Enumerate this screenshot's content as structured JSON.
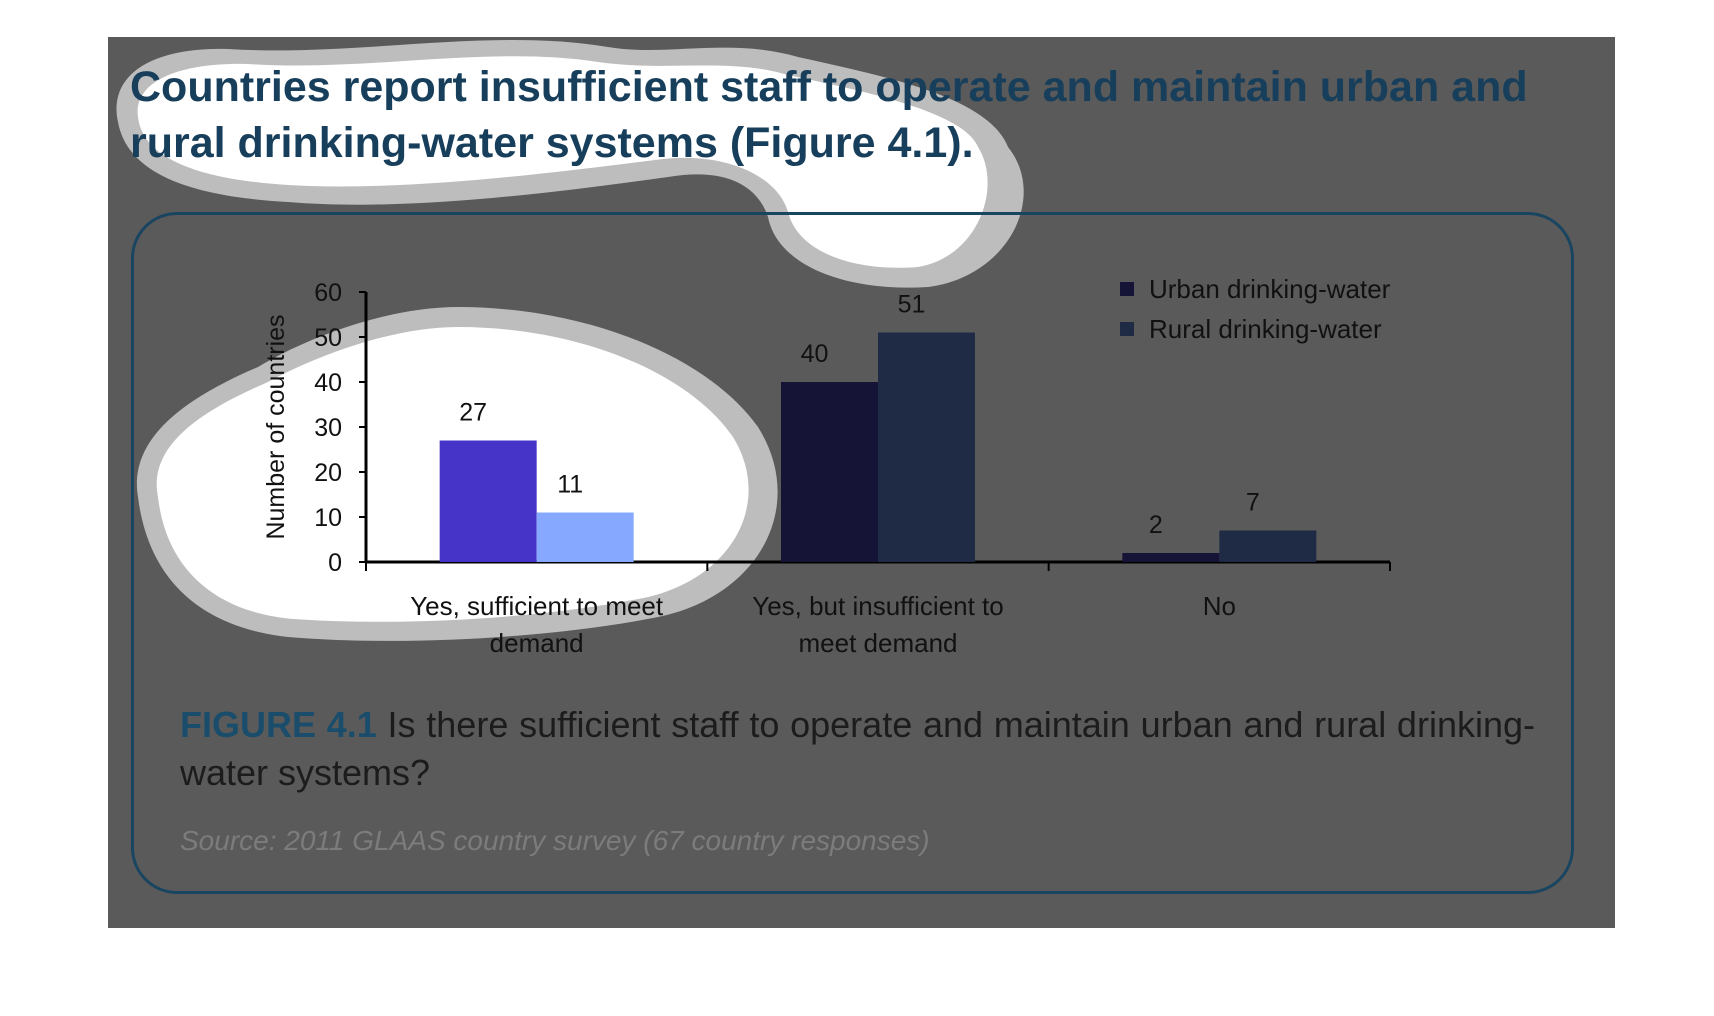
{
  "headline": "Countries report insufficient staff to operate and maintain urban and rural drinking-water systems (Figure 4.1).",
  "caption": {
    "label": "FIGURE 4.1",
    "text": "Is there sufficient staff to operate and maintain urban and rural drinking-water systems?"
  },
  "source": "Source: 2011 GLAAS country survey (67 country responses)",
  "colors": {
    "panel": "#5a5a5a",
    "headline": "#173f5c",
    "frame": "#1a4560",
    "urban": "#161436",
    "rural": "#1f2a45",
    "urban_highlight": "#4534c7",
    "rural_highlight": "#86a9ff"
  },
  "chart_data": {
    "type": "bar",
    "title": "",
    "xlabel": "",
    "ylabel": "Number of countries",
    "ylim": [
      0,
      60
    ],
    "yticks": [
      0,
      10,
      20,
      30,
      40,
      50,
      60
    ],
    "categories": [
      "Yes, sufficient to meet demand",
      "Yes, but insufficient to meet demand",
      "No"
    ],
    "category_lines": [
      [
        "Yes, sufficient to meet",
        "demand"
      ],
      [
        "Yes, but insufficient to",
        "meet demand"
      ],
      [
        "No"
      ]
    ],
    "series": [
      {
        "name": "Urban drinking-water",
        "values": [
          27,
          40,
          2
        ]
      },
      {
        "name": "Rural drinking-water",
        "values": [
          11,
          51,
          7
        ]
      }
    ],
    "data_labels": true,
    "legend": "top-right",
    "grid": false
  }
}
